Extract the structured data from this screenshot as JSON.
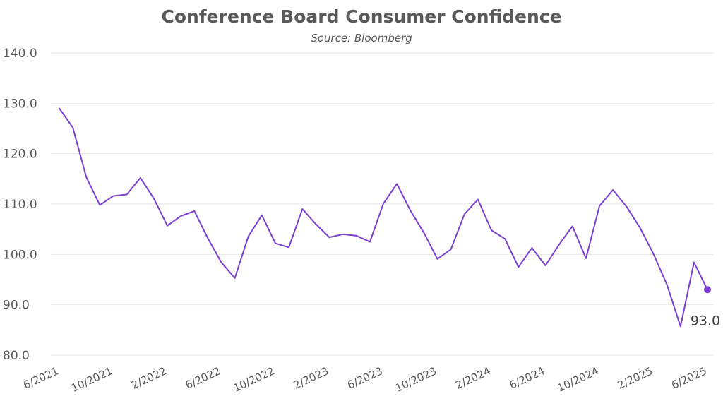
{
  "chart_data": {
    "type": "line",
    "title": "Conference Board Consumer Confidence",
    "subtitle": "Source: Bloomberg",
    "xlabel": "",
    "ylabel": "",
    "ylim": [
      80,
      140
    ],
    "yticks": [
      "80.0",
      "90.0",
      "100.0",
      "110.0",
      "120.0",
      "130.0",
      "140.0"
    ],
    "xticks": [
      {
        "label": "6/2021",
        "x": "2021-06"
      },
      {
        "label": "10/2021",
        "x": "2021-10"
      },
      {
        "label": "2/2022",
        "x": "2022-02"
      },
      {
        "label": "6/2022",
        "x": "2022-06"
      },
      {
        "label": "10/2022",
        "x": "2022-10"
      },
      {
        "label": "2/2023",
        "x": "2023-02"
      },
      {
        "label": "6/2023",
        "x": "2023-06"
      },
      {
        "label": "10/2023",
        "x": "2023-10"
      },
      {
        "label": "2/2024",
        "x": "2024-02"
      },
      {
        "label": "6/2024",
        "x": "2024-06"
      },
      {
        "label": "10/2024",
        "x": "2024-10"
      },
      {
        "label": "2/2025",
        "x": "2025-02"
      },
      {
        "label": "6/2025",
        "x": "2025-06"
      }
    ],
    "grid": true,
    "line_color": "#7b3fd1",
    "end_label": "93.0",
    "series": [
      {
        "x": [
          "2021-06",
          "2021-07",
          "2021-08",
          "2021-09",
          "2021-10",
          "2021-11",
          "2021-12",
          "2022-01",
          "2022-02",
          "2022-03",
          "2022-04",
          "2022-05",
          "2022-06",
          "2022-07",
          "2022-08",
          "2022-09",
          "2022-10",
          "2022-11",
          "2022-12",
          "2023-01",
          "2023-02",
          "2023-03",
          "2023-04",
          "2023-05",
          "2023-06",
          "2023-07",
          "2023-08",
          "2023-09",
          "2023-10",
          "2023-11",
          "2023-12",
          "2024-01",
          "2024-02",
          "2024-03",
          "2024-04",
          "2024-05",
          "2024-06",
          "2024-07",
          "2024-08",
          "2024-09",
          "2024-10",
          "2024-11",
          "2024-12",
          "2025-01",
          "2025-02",
          "2025-03",
          "2025-04",
          "2025-05",
          "2025-06"
        ],
        "values": [
          129.0,
          125.2,
          115.3,
          109.8,
          111.6,
          111.9,
          115.2,
          111.1,
          105.7,
          107.6,
          108.6,
          103.2,
          98.4,
          95.3,
          103.6,
          107.8,
          102.2,
          101.4,
          109.0,
          106.0,
          103.4,
          104.0,
          103.7,
          102.5,
          110.1,
          114.0,
          108.7,
          104.3,
          99.1,
          101.0,
          108.0,
          110.9,
          104.8,
          103.1,
          97.5,
          101.3,
          97.8,
          101.9,
          105.6,
          99.2,
          109.6,
          112.8,
          109.5,
          105.3,
          100.1,
          94.0,
          85.7,
          98.4,
          93.0
        ]
      }
    ]
  }
}
